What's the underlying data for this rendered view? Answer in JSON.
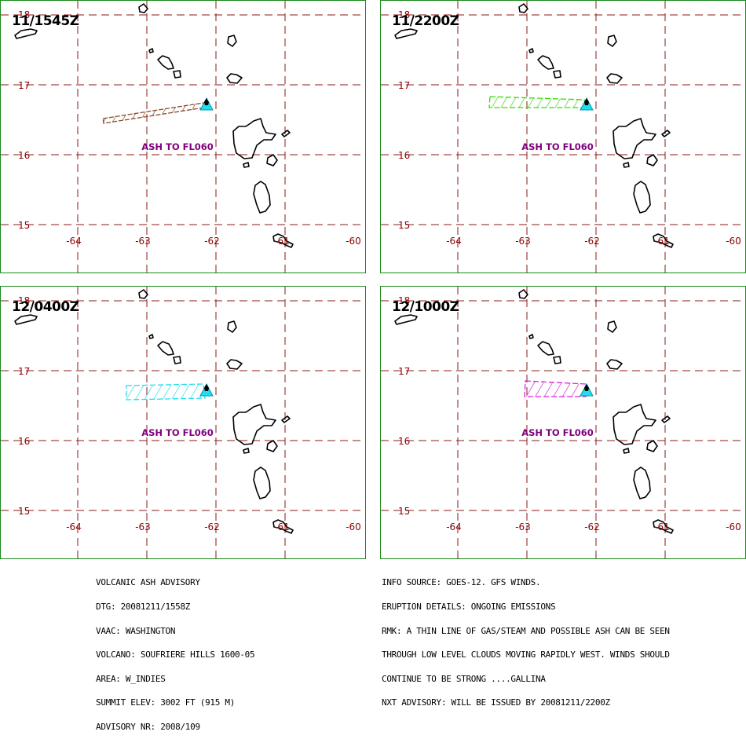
{
  "panels": [
    {
      "time": "11/1545Z",
      "ash_label": "ASH TO FL060",
      "ash_color": "#8B4A2B",
      "style": "thin"
    },
    {
      "time": "11/2200Z",
      "ash_label": "ASH TO FL060",
      "ash_color": "#33DD00",
      "style": "box"
    },
    {
      "time": "12/0400Z",
      "ash_label": "ASH TO FL060",
      "ash_color": "#22DDEE",
      "style": "box"
    },
    {
      "time": "12/1000Z",
      "ash_label": "ASH TO FL060",
      "ash_color": "#DD22DD",
      "style": "box"
    }
  ],
  "map": {
    "lat_labels": [
      "18",
      "17",
      "16",
      "15"
    ],
    "lon_labels": [
      "-64",
      "-63",
      "-62",
      "-61",
      "-60"
    ],
    "volcano_marker_color": "#22DDEE",
    "grid_color": "#8B1A1A",
    "label_color": "#8B0000",
    "ash_label_color": "#800080"
  },
  "info_left": [
    "VOLCANIC ASH ADVISORY",
    "DTG: 20081211/1558Z",
    "VAAC: WASHINGTON",
    "VOLCANO: SOUFRIERE HILLS 1600-05",
    "AREA: W_INDIES",
    "SUMMIT ELEV: 3002 FT (915 M)",
    "ADVISORY NR: 2008/109"
  ],
  "info_right": [
    "INFO SOURCE: GOES-12. GFS WINDS.",
    "ERUPTION DETAILS: ONGOING EMISSIONS",
    "RMK: A THIN LINE OF GAS/STEAM AND POSSIBLE ASH CAN BE SEEN",
    "THROUGH LOW LEVEL CLOUDS MOVING RAPIDLY WEST. WINDS SHOULD",
    "CONTINUE TO BE STRONG ....GALLINA",
    "NXT ADVISORY: WILL BE ISSUED BY 20081211/2200Z"
  ]
}
